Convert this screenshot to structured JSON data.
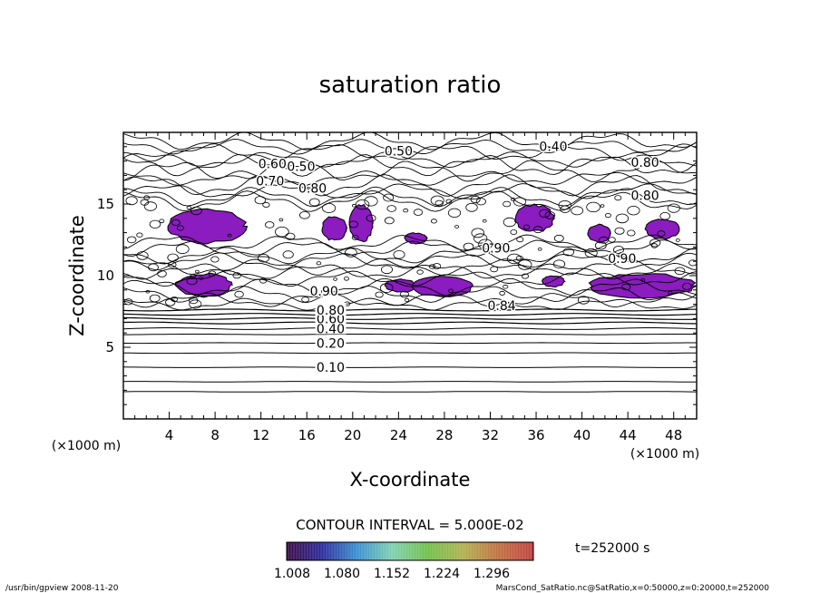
{
  "chart_data": {
    "type": "contour",
    "title": "saturation ratio",
    "xlabel": "X-coordinate",
    "ylabel": "Z-coordinate",
    "x_unit": "(×1000 m)",
    "y_unit": "(×1000 m)",
    "xlim": [
      0,
      50
    ],
    "ylim": [
      0,
      20
    ],
    "x_ticks": [
      4,
      8,
      12,
      16,
      20,
      24,
      28,
      32,
      36,
      40,
      44,
      48
    ],
    "y_ticks": [
      5,
      10,
      15
    ],
    "contour_interval_text": "CONTOUR INTERVAL = 5.000E-02",
    "time_text": "t=252000 s",
    "colorbar": {
      "tick_labels": [
        "1.008",
        "1.080",
        "1.152",
        "1.224",
        "1.296"
      ],
      "colors": [
        "#3b0a45",
        "#2b2b9a",
        "#3a8fd0",
        "#7fd0b0",
        "#6fbf4a",
        "#b0b050",
        "#c07040",
        "#c04040"
      ]
    },
    "fill_color": "#8a1cc0",
    "lower_levels": [
      {
        "z": 1.9,
        "label": ""
      },
      {
        "z": 2.6,
        "label": ""
      },
      {
        "z": 3.6,
        "label": "0.10"
      },
      {
        "z": 4.6,
        "label": ""
      },
      {
        "z": 5.3,
        "label": "0.20"
      },
      {
        "z": 5.9,
        "label": ""
      },
      {
        "z": 6.3,
        "label": "0.40"
      },
      {
        "z": 6.7,
        "label": ""
      },
      {
        "z": 7.0,
        "label": "0.60"
      },
      {
        "z": 7.3,
        "label": ""
      },
      {
        "z": 7.6,
        "label": "0.80"
      }
    ],
    "contour_labels": [
      {
        "x": 24,
        "z": 18.4,
        "text": "0.50"
      },
      {
        "x": 37.5,
        "z": 18.7,
        "text": "0.40"
      },
      {
        "x": 15.5,
        "z": 17.3,
        "text": "0.50"
      },
      {
        "x": 13,
        "z": 17.5,
        "text": "0.60"
      },
      {
        "x": 45.5,
        "z": 17.6,
        "text": "0.80"
      },
      {
        "x": 12.8,
        "z": 16.3,
        "text": "0.70"
      },
      {
        "x": 16.5,
        "z": 15.8,
        "text": "0.80"
      },
      {
        "x": 45.5,
        "z": 15.3,
        "text": "0.80"
      },
      {
        "x": 32.5,
        "z": 11.6,
        "text": "0.90"
      },
      {
        "x": 43.5,
        "z": 10.9,
        "text": "0.90"
      },
      {
        "x": 17.5,
        "z": 8.6,
        "text": "0.90"
      },
      {
        "x": 33,
        "z": 7.6,
        "text": "0.84"
      }
    ],
    "filled_regions": [
      {
        "x0": 3.8,
        "x1": 10.8,
        "z0": 12.2,
        "z1": 14.7
      },
      {
        "x0": 17.3,
        "x1": 19.5,
        "z0": 12.4,
        "z1": 14.2
      },
      {
        "x0": 19.7,
        "x1": 21.8,
        "z0": 12.3,
        "z1": 15.0
      },
      {
        "x0": 24.5,
        "x1": 26.5,
        "z0": 12.2,
        "z1": 13.0
      },
      {
        "x0": 34.1,
        "x1": 37.6,
        "z0": 13.0,
        "z1": 15.0
      },
      {
        "x0": 40.5,
        "x1": 42.5,
        "z0": 12.3,
        "z1": 13.6
      },
      {
        "x0": 45.5,
        "x1": 48.5,
        "z0": 12.5,
        "z1": 14.0
      },
      {
        "x0": 4.5,
        "x1": 9.5,
        "z0": 8.5,
        "z1": 10.2
      },
      {
        "x0": 22.8,
        "x1": 25.5,
        "z0": 8.8,
        "z1": 9.8
      },
      {
        "x0": 25.2,
        "x1": 30.5,
        "z0": 8.5,
        "z1": 10.0
      },
      {
        "x0": 36.5,
        "x1": 38.5,
        "z0": 9.2,
        "z1": 10.0
      },
      {
        "x0": 40.5,
        "x1": 50.0,
        "z0": 8.4,
        "z1": 10.2
      }
    ],
    "footer_left": "/usr/bin/gpview  2008-11-20",
    "footer_right": "MarsCond_SatRatio.nc@SatRatio,x=0:50000,z=0:20000,t=252000"
  }
}
